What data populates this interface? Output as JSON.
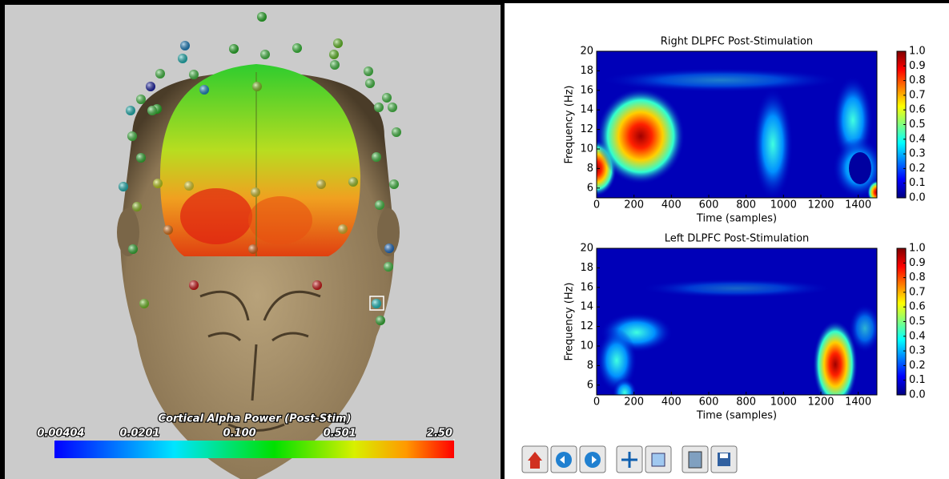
{
  "left_panel": {
    "colorbar": {
      "title": "Cortical Alpha Power (Post-Stim)",
      "scale": "log",
      "xlim": [
        0.00404,
        2.5
      ],
      "ticks": [
        {
          "value": 0.00404,
          "label": "0.00404"
        },
        {
          "value": 0.0201,
          "label": "0.0201"
        },
        {
          "value": 0.1,
          "label": "0.100"
        },
        {
          "value": 0.501,
          "label": "0.501"
        },
        {
          "value": 2.5,
          "label": "2.50"
        }
      ]
    }
  },
  "chart_data": [
    {
      "type": "heatmap",
      "title": "Right  DLPFC Post-Stimulation",
      "x_label": "Time (samples)",
      "y_label": "Frequency (Hz)",
      "xlim": [
        0,
        1500
      ],
      "ylim": [
        5,
        20
      ],
      "xticks": [
        0,
        200,
        400,
        600,
        800,
        1000,
        1200,
        1400
      ],
      "yticks": [
        6,
        8,
        10,
        12,
        14,
        16,
        18,
        20
      ],
      "colormap": "jet",
      "clim": [
        0,
        1
      ],
      "cticks": [
        {
          "value": 0,
          "label": "0.0"
        },
        {
          "value": 0.1,
          "label": "0.1"
        },
        {
          "value": 0.2,
          "label": "0.2"
        },
        {
          "value": 0.3,
          "label": "0.3"
        },
        {
          "value": 0.4,
          "label": "0.4"
        },
        {
          "value": 0.5,
          "label": "0.5"
        },
        {
          "value": 0.6,
          "label": "0.6"
        },
        {
          "value": 0.7,
          "label": "0.7"
        },
        {
          "value": 0.8,
          "label": "0.8"
        },
        {
          "value": 0.9,
          "label": "0.9"
        },
        {
          "value": 1,
          "label": "1.0"
        }
      ]
    },
    {
      "type": "heatmap",
      "title": "Left DLPFC Post-Stimulation",
      "x_label": "Time (samples)",
      "y_label": "Frequency (Hz)",
      "xlim": [
        0,
        1500
      ],
      "ylim": [
        5,
        20
      ],
      "xticks": [
        0,
        200,
        400,
        600,
        800,
        1000,
        1200,
        1400
      ],
      "yticks": [
        6,
        8,
        10,
        12,
        14,
        16,
        18,
        20
      ],
      "colormap": "jet",
      "clim": [
        0,
        1
      ],
      "cticks": [
        {
          "value": 0,
          "label": "0.0"
        },
        {
          "value": 0.1,
          "label": "0.1"
        },
        {
          "value": 0.2,
          "label": "0.2"
        },
        {
          "value": 0.3,
          "label": "0.3"
        },
        {
          "value": 0.4,
          "label": "0.4"
        },
        {
          "value": 0.5,
          "label": "0.5"
        },
        {
          "value": 0.6,
          "label": "0.6"
        },
        {
          "value": 0.7,
          "label": "0.7"
        },
        {
          "value": 0.8,
          "label": "0.8"
        },
        {
          "value": 0.9,
          "label": "0.9"
        },
        {
          "value": 1,
          "label": "1.0"
        }
      ]
    }
  ]
}
